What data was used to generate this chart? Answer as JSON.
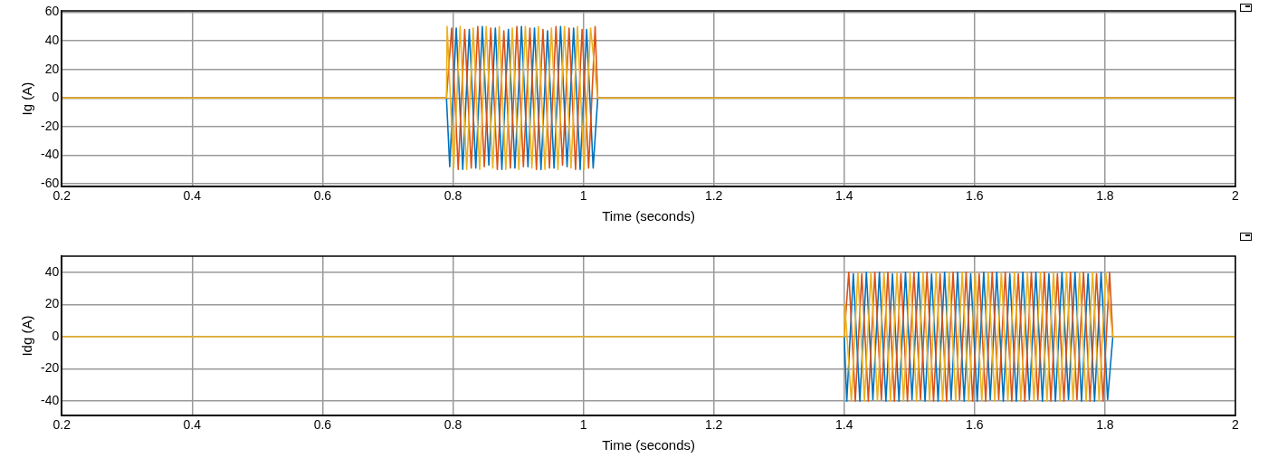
{
  "chart_data": [
    {
      "type": "line",
      "xlabel": "Time (seconds)",
      "ylabel": "Ig (A)",
      "xlim": [
        0.2,
        2
      ],
      "xticks": [
        0.2,
        0.4,
        0.6,
        0.8,
        1,
        1.2,
        1.4,
        1.6,
        1.8,
        2
      ],
      "ylim": [
        -62,
        61
      ],
      "yticks": [
        -60,
        -40,
        -20,
        0,
        20,
        40,
        60
      ],
      "grid": true,
      "legend": false,
      "series": [
        {
          "color": "#0072bd",
          "x": [
            0.2,
            0.79,
            0.795,
            0.805,
            0.815,
            0.825,
            0.835,
            0.845,
            0.855,
            0.865,
            0.875,
            0.885,
            0.895,
            0.905,
            0.915,
            0.925,
            0.935,
            0.945,
            0.955,
            0.965,
            0.975,
            0.985,
            0.995,
            1.005,
            1.015,
            1.022,
            2
          ],
          "values": [
            0,
            0,
            -48,
            49,
            -50,
            48,
            -49,
            50,
            -47,
            49,
            -50,
            48,
            -49,
            50,
            -48,
            49,
            -50,
            47,
            -49,
            50,
            -48,
            49,
            -50,
            48,
            -49,
            0,
            0
          ]
        },
        {
          "color": "#d95319",
          "x": [
            0.2,
            0.79,
            0.798,
            0.808,
            0.818,
            0.828,
            0.838,
            0.848,
            0.858,
            0.868,
            0.878,
            0.888,
            0.898,
            0.908,
            0.918,
            0.928,
            0.938,
            0.948,
            0.958,
            0.968,
            0.978,
            0.988,
            0.998,
            1.008,
            1.018,
            1.022,
            2
          ],
          "values": [
            0,
            0,
            49,
            -50,
            48,
            -49,
            50,
            -48,
            49,
            -50,
            47,
            -49,
            50,
            -48,
            49,
            -50,
            48,
            -49,
            50,
            -47,
            49,
            -50,
            48,
            -49,
            50,
            0,
            0
          ]
        },
        {
          "color": "#edb120",
          "x": [
            0.2,
            0.79,
            0.791,
            0.801,
            0.811,
            0.821,
            0.831,
            0.841,
            0.851,
            0.861,
            0.871,
            0.881,
            0.891,
            0.901,
            0.911,
            0.921,
            0.931,
            0.941,
            0.951,
            0.961,
            0.971,
            0.981,
            0.991,
            1.001,
            1.011,
            1.022,
            2
          ],
          "values": [
            0,
            0,
            50,
            -49,
            50,
            -50,
            49,
            -50,
            50,
            -49,
            50,
            -50,
            49,
            -50,
            50,
            -49,
            50,
            -50,
            49,
            -50,
            50,
            -49,
            50,
            -50,
            49,
            0,
            0
          ]
        }
      ]
    },
    {
      "type": "line",
      "xlabel": "Time (seconds)",
      "ylabel": "Idg (A)",
      "xlim": [
        0.2,
        2
      ],
      "xticks": [
        0.2,
        0.4,
        0.6,
        0.8,
        1,
        1.2,
        1.4,
        1.6,
        1.8,
        2
      ],
      "ylim": [
        -49,
        50
      ],
      "yticks": [
        -40,
        -20,
        0,
        20,
        40
      ],
      "grid": true,
      "legend": false,
      "series": [
        {
          "color": "#0072bd",
          "x": [
            1.4,
            1.404,
            1.414,
            1.424,
            1.434,
            1.444,
            1.454,
            1.464,
            1.474,
            1.484,
            1.494,
            1.504,
            1.514,
            1.524,
            1.534,
            1.544,
            1.554,
            1.564,
            1.574,
            1.584,
            1.594,
            1.604,
            1.614,
            1.624,
            1.634,
            1.644,
            1.654,
            1.664,
            1.674,
            1.684,
            1.694,
            1.704,
            1.714,
            1.724,
            1.734,
            1.744,
            1.754,
            1.764,
            1.774,
            1.784,
            1.794,
            1.804,
            1.812
          ],
          "values": [
            0,
            -40,
            39,
            -40,
            40,
            -39,
            40,
            -40,
            39,
            -40,
            40,
            -39,
            40,
            -40,
            39,
            -40,
            40,
            -39,
            40,
            -40,
            39,
            -40,
            40,
            -39,
            40,
            -40,
            39,
            -40,
            40,
            -39,
            40,
            -40,
            39,
            -40,
            40,
            -39,
            40,
            -40,
            39,
            -40,
            40,
            -39,
            0
          ]
        },
        {
          "color": "#d95319",
          "x": [
            1.4,
            1.407,
            1.417,
            1.427,
            1.437,
            1.447,
            1.457,
            1.467,
            1.477,
            1.487,
            1.497,
            1.507,
            1.517,
            1.527,
            1.537,
            1.547,
            1.557,
            1.567,
            1.577,
            1.587,
            1.597,
            1.607,
            1.617,
            1.627,
            1.637,
            1.647,
            1.657,
            1.667,
            1.677,
            1.687,
            1.697,
            1.707,
            1.717,
            1.727,
            1.737,
            1.747,
            1.757,
            1.767,
            1.777,
            1.787,
            1.797,
            1.807,
            1.812
          ],
          "values": [
            0,
            40,
            -40,
            39,
            -40,
            40,
            -39,
            40,
            -40,
            39,
            -40,
            40,
            -39,
            40,
            -40,
            39,
            -40,
            40,
            -39,
            40,
            -40,
            39,
            -40,
            40,
            -39,
            40,
            -40,
            39,
            -40,
            40,
            -39,
            40,
            -40,
            39,
            -40,
            40,
            -39,
            40,
            -40,
            39,
            -40,
            40,
            0
          ]
        },
        {
          "color": "#edb120",
          "x": [
            0.2,
            1.4,
            1.401,
            1.411,
            1.421,
            1.431,
            1.441,
            1.451,
            1.461,
            1.471,
            1.481,
            1.491,
            1.501,
            1.511,
            1.521,
            1.531,
            1.541,
            1.551,
            1.561,
            1.571,
            1.581,
            1.591,
            1.601,
            1.611,
            1.621,
            1.631,
            1.641,
            1.651,
            1.661,
            1.671,
            1.681,
            1.691,
            1.701,
            1.711,
            1.721,
            1.731,
            1.741,
            1.751,
            1.761,
            1.771,
            1.781,
            1.791,
            1.801,
            1.812,
            2
          ],
          "values": [
            0,
            0,
            20,
            -40,
            40,
            -40,
            40,
            -40,
            40,
            -40,
            40,
            -40,
            40,
            -40,
            40,
            -40,
            40,
            -40,
            40,
            -40,
            40,
            -40,
            40,
            -40,
            40,
            -40,
            40,
            -40,
            40,
            -40,
            40,
            -40,
            40,
            -40,
            40,
            -40,
            40,
            -40,
            40,
            -40,
            40,
            -40,
            40,
            0,
            0
          ]
        }
      ]
    }
  ]
}
